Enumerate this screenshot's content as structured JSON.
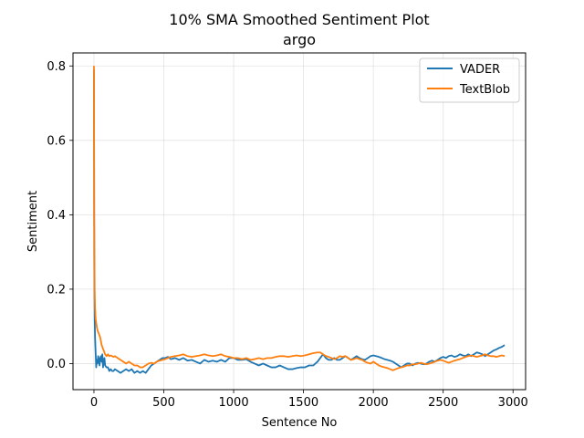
{
  "chart_data": {
    "type": "line",
    "title": "10% SMA Smoothed Sentiment Plot",
    "subtitle": "argo",
    "xlabel": "Sentence No",
    "ylabel": "Sentiment",
    "xlim": [
      -150,
      3090
    ],
    "ylim": [
      -0.07,
      0.835
    ],
    "xticks": [
      0,
      500,
      1000,
      1500,
      2000,
      2500,
      3000
    ],
    "yticks": [
      0.0,
      0.2,
      0.4,
      0.6,
      0.8
    ],
    "xtick_labels": [
      "0",
      "500",
      "1000",
      "1500",
      "2000",
      "2500",
      "3000"
    ],
    "ytick_labels": [
      "0.0",
      "0.2",
      "0.4",
      "0.6",
      "0.8"
    ],
    "grid": true,
    "legend_position": "top-right",
    "series": [
      {
        "name": "VADER",
        "color": "#1f77b4",
        "x": [
          0,
          2,
          5,
          8,
          12,
          16,
          20,
          25,
          30,
          35,
          40,
          45,
          50,
          55,
          60,
          65,
          70,
          75,
          80,
          90,
          100,
          110,
          120,
          130,
          140,
          150,
          170,
          190,
          210,
          230,
          250,
          270,
          290,
          310,
          330,
          350,
          370,
          390,
          410,
          430,
          450,
          470,
          490,
          510,
          530,
          550,
          580,
          610,
          640,
          670,
          700,
          730,
          760,
          790,
          820,
          850,
          880,
          910,
          940,
          970,
          1000,
          1030,
          1060,
          1090,
          1120,
          1150,
          1180,
          1210,
          1240,
          1270,
          1300,
          1330,
          1360,
          1390,
          1420,
          1450,
          1480,
          1510,
          1540,
          1570,
          1600,
          1620,
          1640,
          1660,
          1680,
          1700,
          1720,
          1740,
          1760,
          1780,
          1800,
          1820,
          1840,
          1860,
          1880,
          1900,
          1920,
          1940,
          1960,
          1980,
          2000,
          2020,
          2040,
          2060,
          2080,
          2100,
          2120,
          2140,
          2160,
          2180,
          2200,
          2220,
          2240,
          2260,
          2280,
          2300,
          2320,
          2340,
          2360,
          2380,
          2400,
          2420,
          2440,
          2460,
          2480,
          2500,
          2520,
          2540,
          2560,
          2580,
          2600,
          2620,
          2640,
          2660,
          2680,
          2700,
          2720,
          2740,
          2760,
          2780,
          2800,
          2820,
          2840,
          2860,
          2880,
          2900,
          2920,
          2940
        ],
        "y": [
          0.79,
          0.3,
          0.12,
          0.07,
          0.03,
          -0.01,
          0.01,
          0.0,
          0.02,
          0.01,
          -0.005,
          0.015,
          0.02,
          0.005,
          0.025,
          -0.01,
          0.005,
          0.015,
          -0.005,
          -0.01,
          -0.01,
          -0.02,
          -0.015,
          -0.02,
          -0.02,
          -0.015,
          -0.02,
          -0.025,
          -0.02,
          -0.015,
          -0.02,
          -0.015,
          -0.025,
          -0.02,
          -0.025,
          -0.02,
          -0.025,
          -0.015,
          -0.005,
          0.0,
          0.005,
          0.01,
          0.015,
          0.015,
          0.018,
          0.012,
          0.015,
          0.01,
          0.015,
          0.008,
          0.01,
          0.005,
          0.0,
          0.01,
          0.005,
          0.008,
          0.005,
          0.01,
          0.005,
          0.015,
          0.015,
          0.01,
          0.01,
          0.012,
          0.005,
          0.0,
          -0.005,
          0.0,
          -0.005,
          -0.01,
          -0.01,
          -0.005,
          -0.01,
          -0.015,
          -0.015,
          -0.012,
          -0.01,
          -0.01,
          -0.005,
          -0.005,
          0.005,
          0.015,
          0.025,
          0.015,
          0.01,
          0.01,
          0.015,
          0.01,
          0.01,
          0.015,
          0.02,
          0.015,
          0.01,
          0.015,
          0.02,
          0.015,
          0.012,
          0.01,
          0.015,
          0.02,
          0.022,
          0.02,
          0.018,
          0.015,
          0.012,
          0.01,
          0.008,
          0.005,
          0.0,
          -0.005,
          -0.01,
          -0.005,
          0.0,
          0.0,
          -0.005,
          0.0,
          0.002,
          0.0,
          -0.002,
          0.0,
          0.005,
          0.008,
          0.005,
          0.01,
          0.015,
          0.018,
          0.015,
          0.02,
          0.022,
          0.018,
          0.02,
          0.025,
          0.022,
          0.02,
          0.025,
          0.02,
          0.025,
          0.03,
          0.028,
          0.025,
          0.02,
          0.025,
          0.03,
          0.035,
          0.038,
          0.042,
          0.045,
          0.05
        ]
      },
      {
        "name": "TextBlob",
        "color": "#ff7f0e",
        "x": [
          0,
          2,
          5,
          8,
          12,
          16,
          20,
          25,
          30,
          35,
          40,
          45,
          50,
          55,
          60,
          65,
          70,
          75,
          80,
          90,
          100,
          110,
          120,
          130,
          140,
          150,
          170,
          190,
          210,
          230,
          250,
          270,
          290,
          310,
          330,
          350,
          370,
          390,
          410,
          430,
          450,
          470,
          490,
          510,
          530,
          550,
          580,
          610,
          640,
          670,
          700,
          730,
          760,
          790,
          820,
          850,
          880,
          910,
          940,
          970,
          1000,
          1030,
          1060,
          1090,
          1120,
          1150,
          1180,
          1210,
          1240,
          1270,
          1300,
          1330,
          1360,
          1390,
          1420,
          1450,
          1480,
          1510,
          1540,
          1570,
          1600,
          1620,
          1640,
          1660,
          1680,
          1700,
          1720,
          1740,
          1760,
          1780,
          1800,
          1820,
          1840,
          1860,
          1880,
          1900,
          1920,
          1940,
          1960,
          1980,
          2000,
          2020,
          2040,
          2060,
          2080,
          2100,
          2120,
          2140,
          2160,
          2180,
          2200,
          2220,
          2240,
          2260,
          2280,
          2300,
          2320,
          2340,
          2360,
          2380,
          2400,
          2420,
          2440,
          2460,
          2480,
          2500,
          2520,
          2540,
          2560,
          2580,
          2600,
          2620,
          2640,
          2660,
          2680,
          2700,
          2720,
          2740,
          2760,
          2780,
          2800,
          2820,
          2840,
          2860,
          2880,
          2900,
          2920,
          2940
        ],
        "y": [
          0.8,
          0.4,
          0.2,
          0.15,
          0.12,
          0.11,
          0.1,
          0.09,
          0.085,
          0.08,
          0.075,
          0.07,
          0.06,
          0.05,
          0.045,
          0.04,
          0.035,
          0.03,
          0.025,
          0.02,
          0.025,
          0.02,
          0.022,
          0.02,
          0.018,
          0.02,
          0.015,
          0.01,
          0.005,
          0.0,
          0.005,
          0.0,
          -0.005,
          -0.005,
          -0.01,
          -0.01,
          -0.005,
          0.0,
          0.002,
          0.0,
          0.005,
          0.008,
          0.01,
          0.012,
          0.015,
          0.018,
          0.02,
          0.022,
          0.025,
          0.02,
          0.018,
          0.02,
          0.022,
          0.025,
          0.022,
          0.02,
          0.022,
          0.025,
          0.02,
          0.018,
          0.015,
          0.015,
          0.012,
          0.015,
          0.01,
          0.012,
          0.015,
          0.012,
          0.015,
          0.015,
          0.018,
          0.02,
          0.02,
          0.018,
          0.02,
          0.022,
          0.02,
          0.022,
          0.025,
          0.028,
          0.03,
          0.03,
          0.025,
          0.02,
          0.018,
          0.015,
          0.012,
          0.015,
          0.02,
          0.018,
          0.02,
          0.015,
          0.01,
          0.012,
          0.015,
          0.012,
          0.01,
          0.005,
          0.002,
          0.0,
          0.005,
          0.0,
          -0.005,
          -0.008,
          -0.01,
          -0.012,
          -0.015,
          -0.018,
          -0.015,
          -0.012,
          -0.01,
          -0.008,
          -0.005,
          -0.005,
          -0.002,
          -0.002,
          0.0,
          0.002,
          0.0,
          -0.002,
          0.0,
          0.002,
          0.005,
          0.008,
          0.01,
          0.008,
          0.005,
          0.002,
          0.005,
          0.008,
          0.01,
          0.012,
          0.015,
          0.018,
          0.02,
          0.022,
          0.02,
          0.018,
          0.02,
          0.022,
          0.025,
          0.022,
          0.02,
          0.02,
          0.018,
          0.02,
          0.022,
          0.02
        ]
      }
    ]
  }
}
